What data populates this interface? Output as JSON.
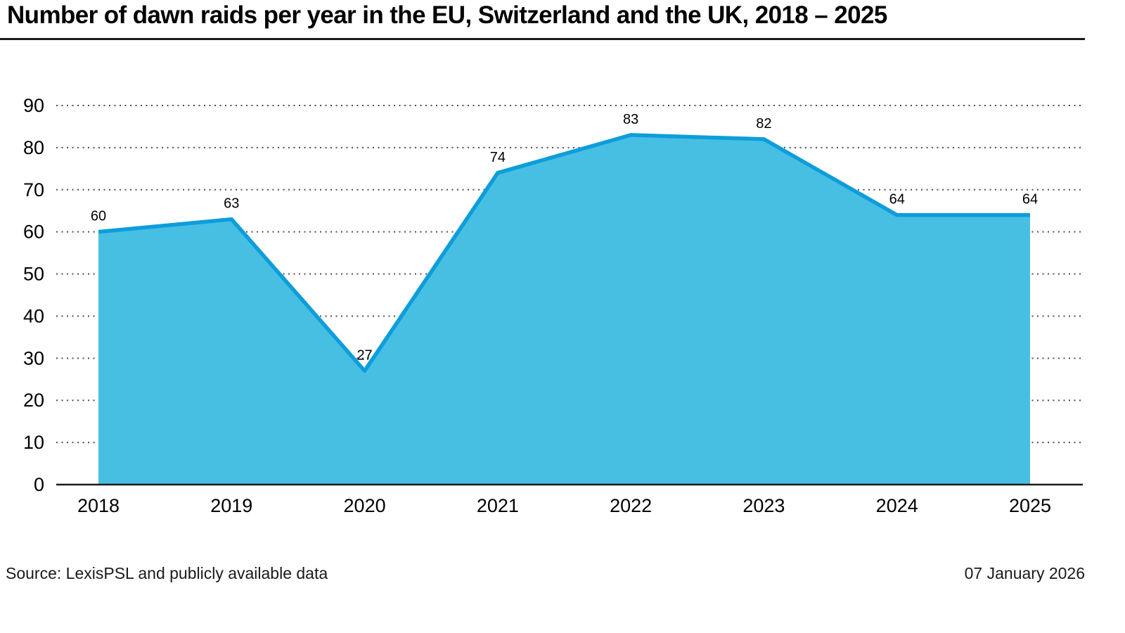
{
  "title": "Number of dawn raids per year in the EU, Switzerland and the UK, 2018 – 2025",
  "footer": {
    "source": "Source: LexisPSL and publicly available data",
    "date": "07 January 2026"
  },
  "colors": {
    "area_fill": "#47BFE3",
    "line_stroke": "#0D9DDB",
    "grid": "#4d4d4d",
    "axis": "#1a1a1a",
    "label_text": "#000000"
  },
  "chart_data": {
    "type": "area",
    "title": "Number of dawn raids per year in the EU, Switzerland and the UK, 2018 – 2025",
    "categories": [
      "2018",
      "2019",
      "2020",
      "2021",
      "2022",
      "2023",
      "2024",
      "2025"
    ],
    "values": [
      60,
      63,
      27,
      74,
      83,
      82,
      64,
      64
    ],
    "data_labels": [
      "60",
      "63",
      "27",
      "74",
      "83",
      "82",
      "64",
      "64"
    ],
    "xlabel": "",
    "ylabel": "",
    "ylim": [
      0,
      90
    ],
    "yticks": [
      0,
      10,
      20,
      30,
      40,
      50,
      60,
      70,
      80,
      90
    ],
    "grid": "horizontal-dotted",
    "legend": "none"
  }
}
